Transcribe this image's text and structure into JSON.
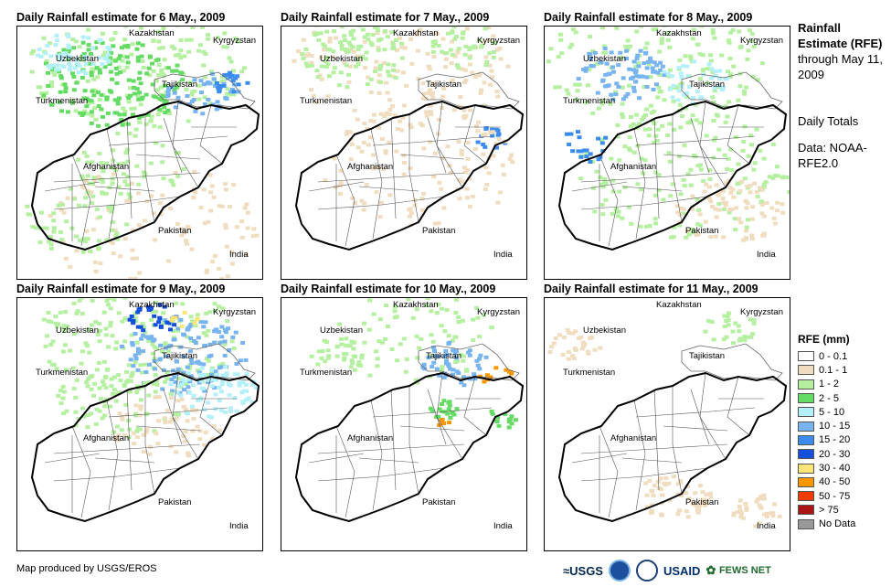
{
  "panels": [
    {
      "title": "Daily Rainfall estimate for 6 May., 2009",
      "rain": "heavy-north"
    },
    {
      "title": "Daily Rainfall estimate for 7 May., 2009",
      "rain": "light"
    },
    {
      "title": "Daily Rainfall estimate for 8 May., 2009",
      "rain": "moderate"
    },
    {
      "title": "Daily Rainfall estimate for 9 May., 2009",
      "rain": "heavy-northeast"
    },
    {
      "title": "Daily Rainfall estimate for 10 May., 2009",
      "rain": "scattered"
    },
    {
      "title": "Daily Rainfall estimate for 11 May., 2009",
      "rain": "dry"
    }
  ],
  "map_labels": {
    "kazakhstan": "Kazakhstan",
    "kyrgyzstan": "Kyrgyzstan",
    "uzbekistan": "Uzbekistan",
    "tajikistan": "Tajikistan",
    "turkmenistan": "Turkmenistan",
    "afghanistan": "Afghanistan",
    "pakistan": "Pakistan",
    "india": "India"
  },
  "side_info": {
    "heading": "Rainfall Estimate (RFE)",
    "through": "through May 11, 2009",
    "totals": "Daily Totals",
    "data_source": "Data: NOAA-RFE2.0"
  },
  "legend": {
    "title": "RFE (mm)",
    "items": [
      {
        "label": "0 - 0.1",
        "color": "#ffffff"
      },
      {
        "label": "0.1 - 1",
        "color": "#f0dcbe"
      },
      {
        "label": "1 - 2",
        "color": "#b4f0a0"
      },
      {
        "label": "2 - 5",
        "color": "#64dc64"
      },
      {
        "label": "5 - 10",
        "color": "#b4f0fa"
      },
      {
        "label": "10 - 15",
        "color": "#78b4f0"
      },
      {
        "label": "15 - 20",
        "color": "#3c8cf0"
      },
      {
        "label": "20 - 30",
        "color": "#1450dc"
      },
      {
        "label": "30 - 40",
        "color": "#fae678"
      },
      {
        "label": "40 - 50",
        "color": "#fa9600"
      },
      {
        "label": "50 - 75",
        "color": "#f03c00"
      },
      {
        "label": "> 75",
        "color": "#aa1414"
      },
      {
        "label": "No Data",
        "color": "#999999"
      }
    ]
  },
  "credit": "Map produced by USGS/EROS",
  "logos": {
    "usgs": "USGS",
    "usaid": "USAID",
    "fewsnet": "FEWS NET"
  }
}
